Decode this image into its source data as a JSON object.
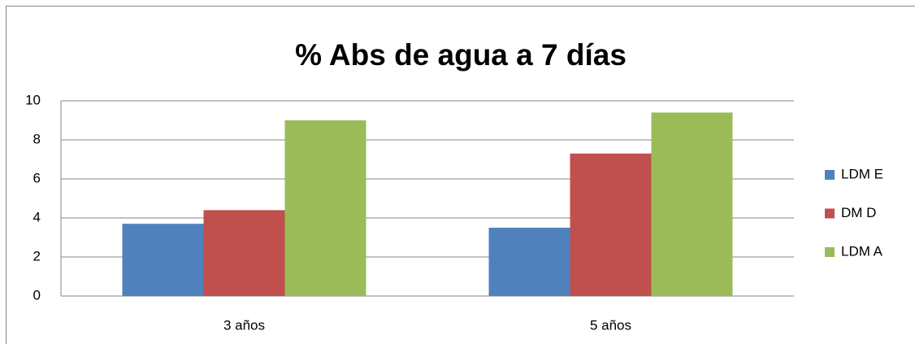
{
  "chart_data": {
    "type": "bar",
    "title": "% Abs de agua a 7 días",
    "categories": [
      "3 años",
      "5 años"
    ],
    "series": [
      {
        "name": "LDM E",
        "color": "#4f81bd",
        "values": [
          3.7,
          3.5
        ]
      },
      {
        "name": "DM D",
        "color": "#c0504d",
        "values": [
          4.4,
          7.3
        ]
      },
      {
        "name": "LDM A",
        "color": "#9bbb59",
        "values": [
          9.0,
          9.4
        ]
      }
    ],
    "ylim": [
      0,
      10
    ],
    "yticks": [
      0,
      2,
      4,
      6,
      8,
      10
    ],
    "grid": true,
    "legend": "right"
  }
}
